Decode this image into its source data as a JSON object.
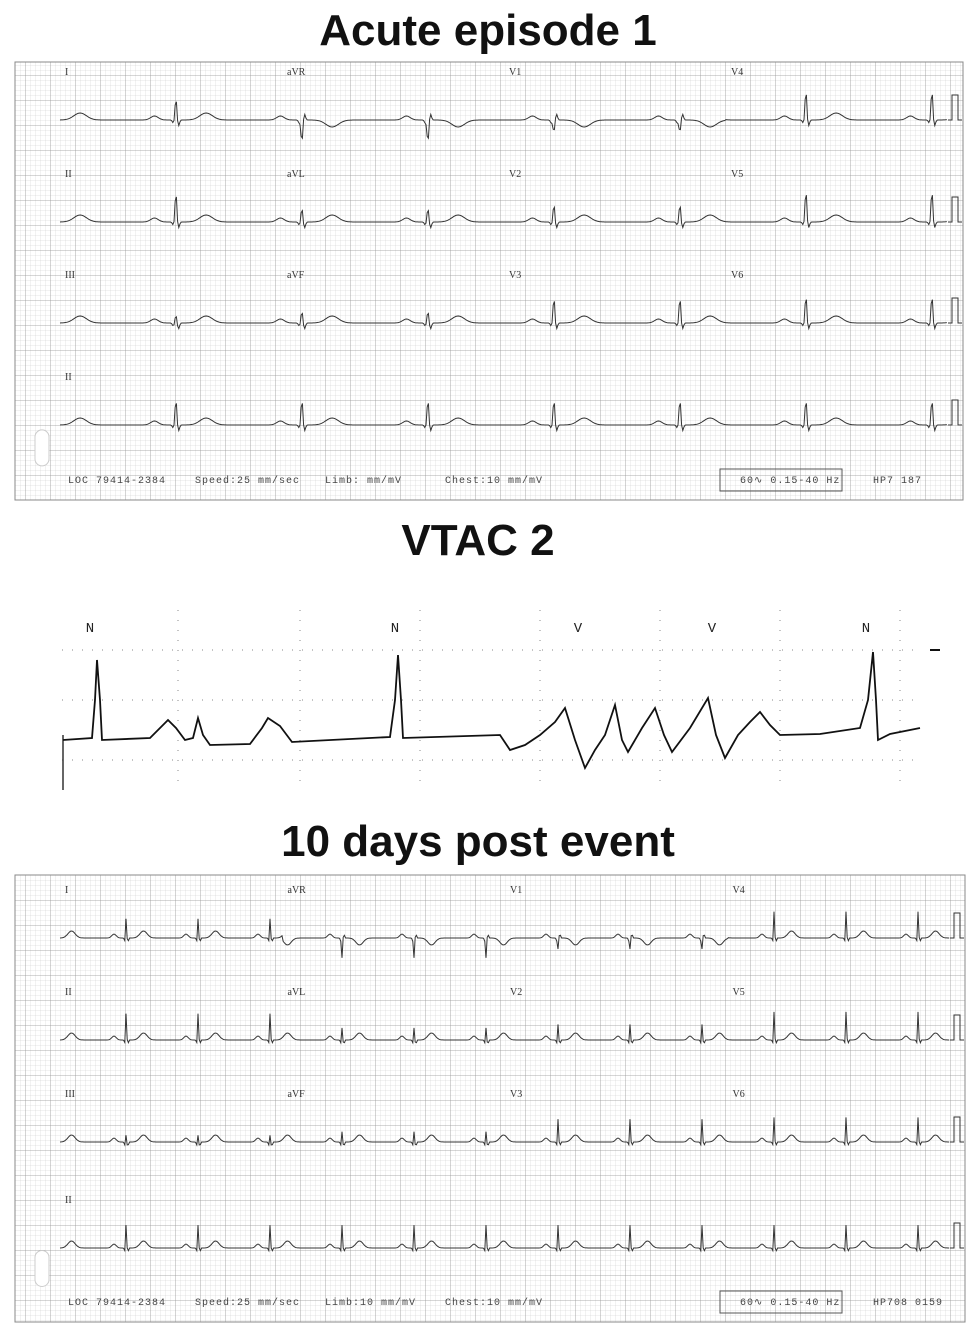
{
  "panels": [
    {
      "title": "Acute episode 1",
      "leads": [
        "I",
        "aVR",
        "V1",
        "V4",
        "II",
        "aVL",
        "V2",
        "V5",
        "III",
        "aVF",
        "V3",
        "V6",
        "II"
      ],
      "footer": [
        "LOC 79414-2384",
        "Speed:25 mm/sec",
        "Limb:  mm/mV",
        "Chest:10 mm/mV",
        "60∿ 0.15-40 Hz",
        "HP7  187"
      ]
    },
    {
      "title": "VTAC 2",
      "beat_labels": [
        "N",
        "N",
        "V",
        "V",
        "N"
      ]
    },
    {
      "title": "10 days post event",
      "leads": [
        "I",
        "aVR",
        "V1",
        "V4",
        "II",
        "aVL",
        "V2",
        "V5",
        "III",
        "aVF",
        "V3",
        "V6",
        "II"
      ],
      "footer": [
        "LOC 79414-2384",
        "Speed:25 mm/sec",
        "Limb:10 mm/mV",
        "Chest:10 mm/mV",
        "60∿ 0.15-40 Hz",
        "HP708  0159"
      ]
    }
  ]
}
